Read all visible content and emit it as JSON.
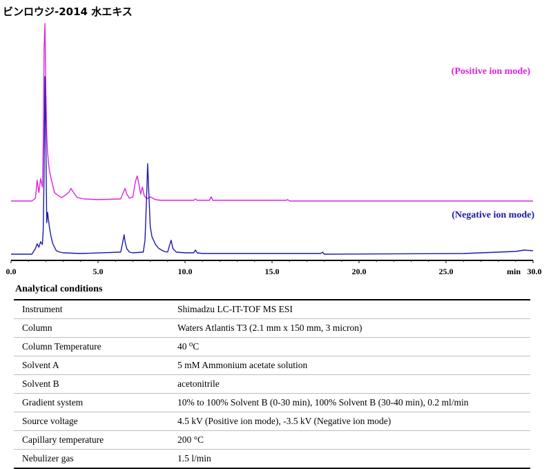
{
  "chart_data": {
    "type": "line",
    "title": "ビンロウジ-2014 水エキス",
    "xlabel": "min",
    "xlim": [
      0,
      30
    ],
    "x_ticks": [
      "0.0",
      "5.0",
      "10.0",
      "15.0",
      "20.0",
      "25.0",
      "30.0"
    ],
    "x_tick_values": [
      0,
      5,
      10,
      15,
      20,
      25,
      30
    ],
    "grid": false,
    "series": [
      {
        "name": "(Positive ion mode)",
        "color": "#e020e0",
        "baseline": 0,
        "x": [
          0.0,
          1.2,
          1.4,
          1.5,
          1.6,
          1.7,
          1.8,
          1.85,
          1.9,
          1.95,
          2.0,
          2.05,
          2.1,
          2.15,
          2.2,
          2.3,
          2.4,
          2.5,
          2.7,
          2.9,
          3.1,
          3.3,
          3.45,
          3.6,
          3.8,
          4.2,
          5.0,
          6.3,
          6.45,
          6.55,
          6.65,
          6.8,
          7.0,
          7.15,
          7.25,
          7.35,
          7.45,
          7.55,
          7.65,
          7.8,
          8.0,
          8.3,
          8.6,
          9.5,
          10.5,
          10.6,
          10.7,
          11.0,
          11.4,
          11.5,
          11.6,
          12.0,
          15.8,
          15.9,
          16.0,
          25.0,
          30.0
        ],
        "y": [
          0,
          0,
          4,
          30,
          12,
          32,
          20,
          80,
          220,
          255,
          160,
          95,
          70,
          55,
          45,
          32,
          22,
          12,
          8,
          5,
          8,
          12,
          18,
          12,
          5,
          3,
          2,
          3,
          12,
          18,
          10,
          4,
          6,
          28,
          36,
          24,
          10,
          20,
          8,
          3,
          6,
          2,
          1,
          1,
          1,
          3,
          1,
          1,
          1,
          6,
          1,
          1,
          1,
          2,
          0,
          0,
          0
        ]
      },
      {
        "name": "(Negative ion mode)",
        "color": "#1a1aa8",
        "baseline": 0,
        "x": [
          0.0,
          1.2,
          1.4,
          1.5,
          1.6,
          1.7,
          1.8,
          1.85,
          1.9,
          1.95,
          2.0,
          2.05,
          2.1,
          2.2,
          2.3,
          2.4,
          2.5,
          2.6,
          2.8,
          3.0,
          4.0,
          6.3,
          6.4,
          6.5,
          6.55,
          6.65,
          6.8,
          7.0,
          7.6,
          7.7,
          7.8,
          7.85,
          7.9,
          7.95,
          8.0,
          8.1,
          8.3,
          8.5,
          8.8,
          9.0,
          9.1,
          9.2,
          9.3,
          9.5,
          10.0,
          10.5,
          10.6,
          10.7,
          11.0,
          12.0,
          17.8,
          17.9,
          18.0,
          26.0,
          27.0,
          28.0,
          29.0,
          29.5,
          30.0
        ],
        "y": [
          0,
          0,
          8,
          15,
          10,
          18,
          14,
          35,
          120,
          255,
          160,
          45,
          60,
          40,
          25,
          15,
          10,
          5,
          3,
          2,
          1,
          3,
          15,
          28,
          18,
          8,
          3,
          2,
          3,
          20,
          90,
          130,
          100,
          70,
          40,
          25,
          14,
          8,
          4,
          3,
          12,
          20,
          8,
          3,
          2,
          2,
          6,
          2,
          1,
          1,
          1,
          3,
          0,
          1,
          2,
          3,
          4,
          6,
          5
        ]
      }
    ]
  },
  "conditions": {
    "heading": "Analytical conditions",
    "rows": [
      {
        "parameter": "Instrument",
        "value": "Shimadzu LC-IT-TOF MS ESI"
      },
      {
        "parameter": "Column",
        "value": "Waters Atlantis T3 (2.1 mm x 150 mm, 3 micron)"
      },
      {
        "parameter": "Column Temperature",
        "value": "40 ⁰C"
      },
      {
        "parameter": "Solvent A",
        "value": "5 mM Ammonium acetate solution"
      },
      {
        "parameter": "Solvent B",
        "value": "acetonitrile"
      },
      {
        "parameter": "Gradient system",
        "value": "10% to 100% Solvent B (0-30 min), 100% Solvent B (30-40 min), 0.2 ml/min"
      },
      {
        "parameter": "Source voltage",
        "value": "4.5 kV (Positive ion mode), -3.5 kV (Negative ion mode)"
      },
      {
        "parameter": "Capillary temperature",
        "value": "200 °C"
      },
      {
        "parameter": "Nebulizer gas",
        "value": "1.5 l/min"
      }
    ]
  }
}
